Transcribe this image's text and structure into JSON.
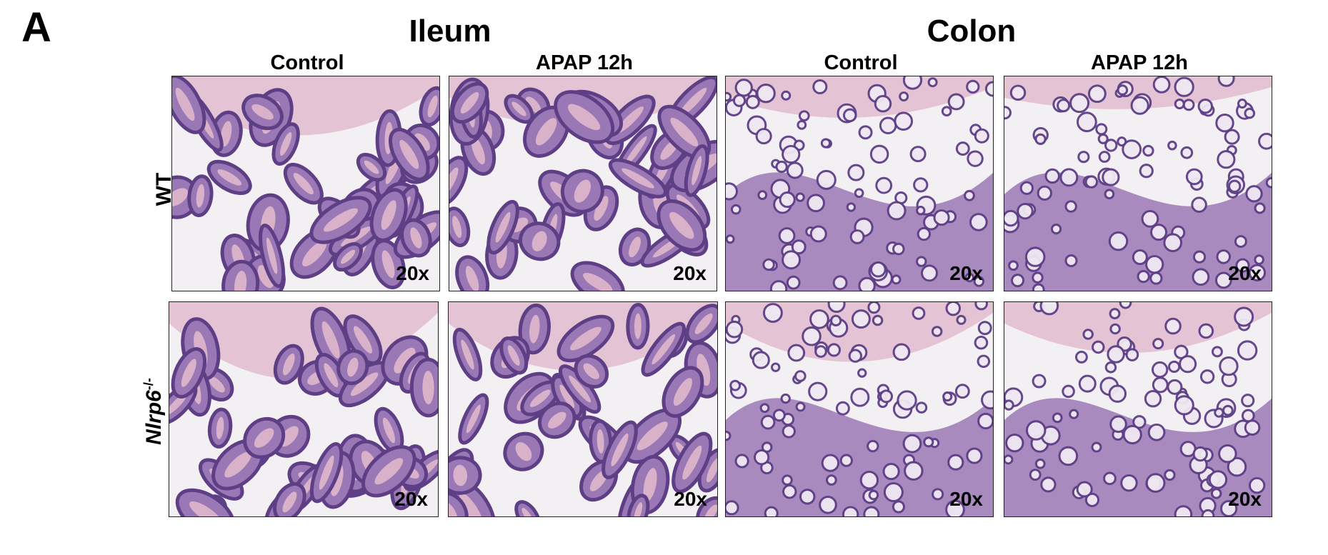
{
  "panel_label": "A",
  "tissues": [
    {
      "label": "Ileum"
    },
    {
      "label": "Colon"
    }
  ],
  "conditions": [
    "Control",
    "APAP 12h",
    "Control",
    "APAP 12h"
  ],
  "rows": [
    {
      "label": "WT"
    },
    {
      "label_main": "Nlrp6",
      "label_sup": "-/-"
    }
  ],
  "magnification": "20x",
  "colors": {
    "stain_dark": "#5e3f86",
    "stain_mid": "#9a78b5",
    "stroma": "#e0b8cc",
    "lumen": "#f3f0f4"
  },
  "tiles": [
    {
      "id": "wt-ileum-control",
      "tissue": "ileum",
      "magnification": "20x"
    },
    {
      "id": "wt-ileum-apap",
      "tissue": "ileum",
      "magnification": "20x"
    },
    {
      "id": "wt-colon-control",
      "tissue": "colon",
      "magnification": "20x"
    },
    {
      "id": "wt-colon-apap",
      "tissue": "colon",
      "magnification": "20x"
    },
    {
      "id": "ko-ileum-control",
      "tissue": "ileum",
      "magnification": "20x"
    },
    {
      "id": "ko-ileum-apap",
      "tissue": "ileum",
      "magnification": "20x"
    },
    {
      "id": "ko-colon-control",
      "tissue": "colon",
      "magnification": "20x"
    },
    {
      "id": "ko-colon-apap",
      "tissue": "colon",
      "magnification": "20x"
    }
  ]
}
